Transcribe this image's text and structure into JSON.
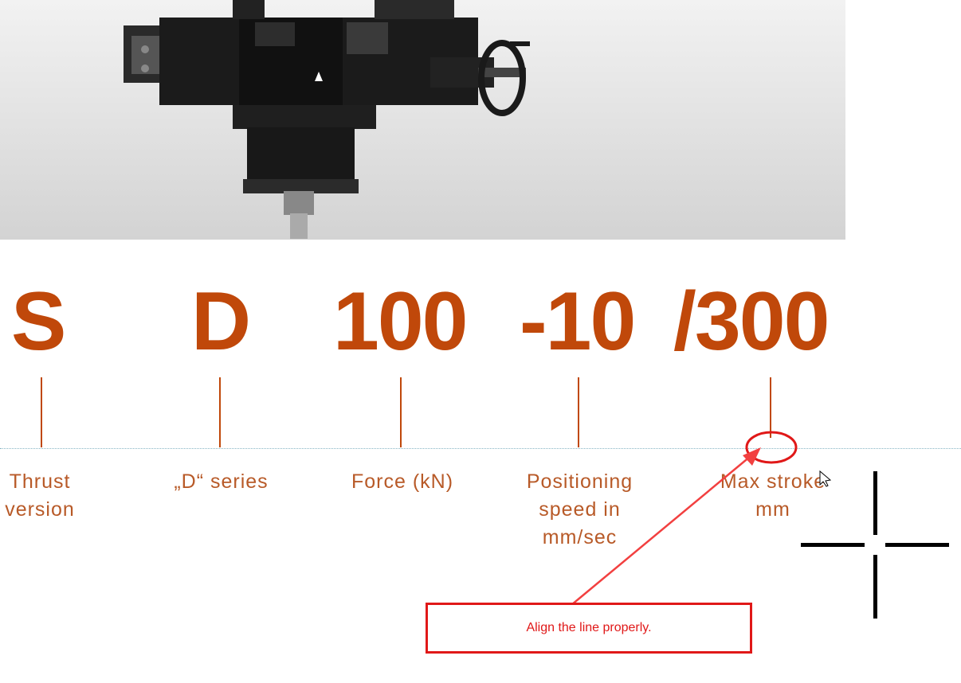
{
  "code_parts": {
    "thrust": "S",
    "series": "D",
    "force": "100",
    "speed": "-10",
    "stroke": "/300"
  },
  "labels": {
    "thrust_line1": "Thrust",
    "thrust_line2": "version",
    "series": "„D“ series",
    "force": "Force (kN)",
    "speed_line1": "Positioning",
    "speed_line2": "speed in",
    "speed_line3": "mm/sec",
    "stroke_line1": "Max stroke",
    "stroke_line2": "mm"
  },
  "annotation": {
    "text": "Align the line properly.",
    "color": "#e01818"
  },
  "colors": {
    "accent": "#c0480a",
    "label": "#b85a28",
    "annotation": "#e01818"
  },
  "icons": {
    "cursor": "crosshair-cursor-icon",
    "pointer": "arrow-pointer-icon"
  }
}
